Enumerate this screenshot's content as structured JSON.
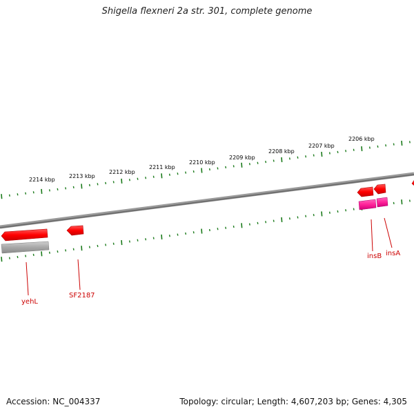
{
  "title": "Shigella flexneri 2a str. 301, complete genome",
  "footer": {
    "accession": "Accession: NC_004337",
    "summary": "Topology: circular; Length: 4,607,203 bp; Genes: 4,305"
  },
  "ruler": {
    "labels": [
      "2214 kbp",
      "2213 kbp",
      "2212 kbp",
      "2211 kbp",
      "2210 kbp",
      "2209 kbp",
      "2208 kbp",
      "2207 kbp",
      "2206 kbp"
    ],
    "tick_color": "#1a7a1a"
  },
  "genes": [
    {
      "label": "yehL",
      "strand": "reverse",
      "color": "#ff0000"
    },
    {
      "label": "SF2187",
      "strand": "reverse",
      "color": "#ff0000"
    },
    {
      "label": "insB",
      "strand": "reverse",
      "color": "#ff0000"
    },
    {
      "label": "insA",
      "strand": "reverse",
      "color": "#ff0000"
    }
  ],
  "colors": {
    "gene": "#ff0000",
    "gene_label": "#cc0000",
    "pseudo_gene": "#ff3399",
    "backbone": "#808080",
    "rrna_like": "#a0a0a0"
  }
}
